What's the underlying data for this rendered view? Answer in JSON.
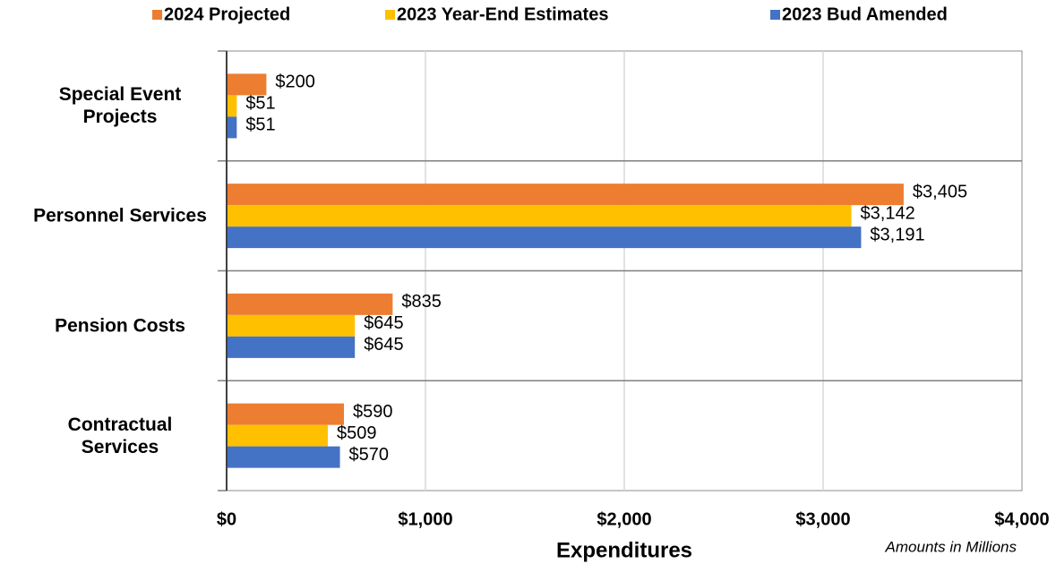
{
  "chart_data": {
    "type": "bar",
    "orientation": "horizontal",
    "categories": [
      "Special Event Projects",
      "Personnel Services",
      "Pension Costs",
      "Contractual Services"
    ],
    "series": [
      {
        "name": "2024 Projected",
        "color": "#ED7D31",
        "values": [
          200,
          3405,
          835,
          590
        ],
        "value_labels": [
          "$200",
          "$3,405",
          "$835",
          "$590"
        ]
      },
      {
        "name": "2023 Year-End Estimates",
        "color": "#FFC000",
        "values": [
          51,
          3142,
          645,
          509
        ],
        "value_labels": [
          "$51",
          "$3,142",
          "$645",
          "$509"
        ]
      },
      {
        "name": "2023 Bud Amended",
        "color": "#4472C4",
        "values": [
          51,
          3191,
          645,
          570
        ],
        "value_labels": [
          "$51",
          "$3,191",
          "$645",
          "$570"
        ]
      }
    ],
    "xlim": [
      0,
      4000
    ],
    "xticks": [
      {
        "value": 0,
        "label": "$0"
      },
      {
        "value": 1000,
        "label": "$1,000"
      },
      {
        "value": 2000,
        "label": "$2,000"
      },
      {
        "value": 3000,
        "label": "$3,000"
      },
      {
        "value": 4000,
        "label": "$4,000"
      }
    ],
    "x_label": "Expenditures",
    "annotation": "Amounts in Millions",
    "grid": true,
    "legend": "top"
  }
}
